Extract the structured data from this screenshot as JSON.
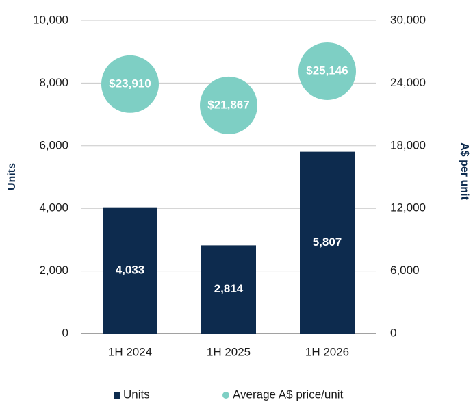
{
  "chart_data": {
    "type": "bar",
    "categories": [
      "1H 2024",
      "1H 2025",
      "1H 2026"
    ],
    "series": [
      {
        "name": "Units",
        "type": "bar",
        "color": "#0d2b4e",
        "values": [
          4033,
          2814,
          5807
        ],
        "value_labels": [
          "4,033",
          "2,814",
          "5,807"
        ]
      },
      {
        "name": "Average A$ price/unit",
        "type": "scatter",
        "axis": "y2",
        "color": "#7ecfc4",
        "values": [
          23910,
          21867,
          25146
        ],
        "value_labels": [
          "$23,910",
          "$21,867",
          "$25,146"
        ]
      }
    ],
    "ylabel": "Units",
    "y2label": "A$ per unit",
    "ylim": [
      0,
      10000
    ],
    "yticks": [
      0,
      {
        "value": 2000,
        "label": "2,000"
      },
      {
        "value": 4000,
        "label": "4,000"
      },
      {
        "value": 6000,
        "label": "6,000"
      },
      {
        "value": 8000,
        "label": "8,000"
      },
      {
        "value": 10000,
        "label": "10,000"
      }
    ],
    "y2lim": [
      0,
      30000
    ],
    "y2ticks": [
      0,
      {
        "value": 6000,
        "label": "6,000"
      },
      {
        "value": 12000,
        "label": "12,000"
      },
      {
        "value": 18000,
        "label": "18,000"
      },
      {
        "value": 24000,
        "label": "24,000"
      },
      {
        "value": 30000,
        "label": "30,000"
      }
    ],
    "grid": true,
    "legend": "bottom"
  }
}
